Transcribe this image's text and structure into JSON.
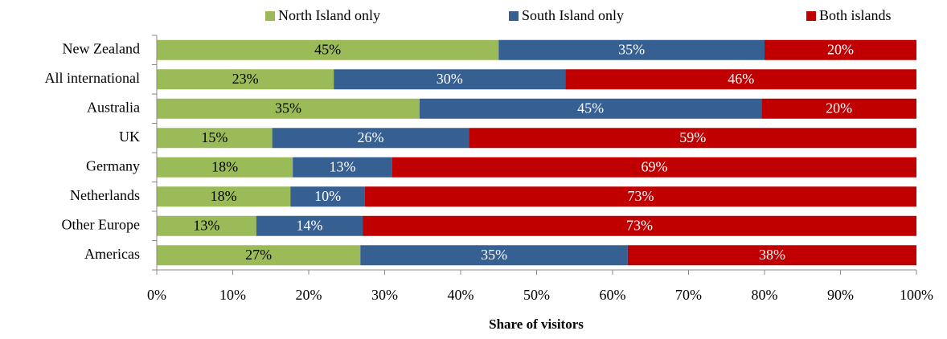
{
  "chart_data": {
    "type": "stacked_bar_horizontal",
    "categories": [
      "New Zealand",
      "All international",
      "Australia",
      "UK",
      "Germany",
      "Netherlands",
      "Other Europe",
      "Americas"
    ],
    "series": [
      {
        "name": "North Island only",
        "color": "#9bbb59",
        "values": [
          45.0,
          23.3,
          34.6,
          15.2,
          17.9,
          17.6,
          13.1,
          26.8
        ],
        "value_labels": [
          "45%",
          "23%",
          "35%",
          "15%",
          "18%",
          "18%",
          "13%",
          "27%"
        ]
      },
      {
        "name": "South Island only",
        "color": "#376092",
        "values": [
          35.0,
          30.5,
          45.0,
          25.9,
          13.1,
          9.8,
          14.0,
          35.2
        ],
        "value_labels": [
          "35%",
          "30%",
          "45%",
          "26%",
          "13%",
          "10%",
          "14%",
          "35%"
        ]
      },
      {
        "name": "Both islands",
        "color": "#c00000",
        "values": [
          20.0,
          46.2,
          20.4,
          58.9,
          69.0,
          72.6,
          72.9,
          38.0
        ],
        "value_labels": [
          "20%",
          "46%",
          "20%",
          "59%",
          "69%",
          "73%",
          "73%",
          "38%"
        ]
      }
    ],
    "xlabel": "Share of visitors",
    "xlim": [
      0,
      100
    ],
    "xticks": [
      {
        "value": 0,
        "label": "0%"
      },
      {
        "value": 10,
        "label": "10%"
      },
      {
        "value": 20,
        "label": "20%"
      },
      {
        "value": 30,
        "label": "30%"
      },
      {
        "value": 40,
        "label": "40%"
      },
      {
        "value": 50,
        "label": "50%"
      },
      {
        "value": 60,
        "label": "60%"
      },
      {
        "value": 70,
        "label": "70%"
      },
      {
        "value": 80,
        "label": "80%"
      },
      {
        "value": 90,
        "label": "90%"
      },
      {
        "value": 100,
        "label": "100%"
      }
    ],
    "legend": "top"
  }
}
